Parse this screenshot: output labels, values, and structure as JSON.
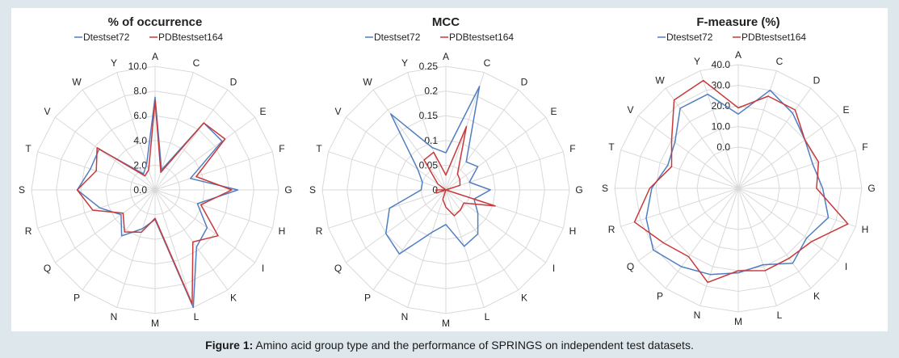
{
  "caption": {
    "label": "Figure 1:",
    "text": " Amino acid group type and the performance of SPRINGS on independent test datasets."
  },
  "colors": {
    "Dtestset72": "#4f7ec2",
    "PDBtestset164": "#c9383a",
    "grid": "#d9d9d9",
    "axis": "#bfbfbf",
    "background": "#dde7ec"
  },
  "chart_data": [
    {
      "type": "radar",
      "title": "% of occurrence",
      "categories": [
        "A",
        "C",
        "D",
        "E",
        "F",
        "G",
        "H",
        "I",
        "K",
        "L",
        "M",
        "N",
        "P",
        "Q",
        "R",
        "S",
        "T",
        "V",
        "W",
        "Y"
      ],
      "range": [
        0,
        10
      ],
      "ticks": [
        "0.0",
        "2.0",
        "4.0",
        "6.0",
        "8.0",
        "10.0"
      ],
      "tick_values": [
        0,
        2,
        4,
        6,
        8,
        10
      ],
      "series": [
        {
          "name": "Dtestset72",
          "values": [
            7.5,
            1.7,
            6.7,
            6.7,
            3.0,
            6.7,
            3.6,
            5.2,
            5.7,
            10.0,
            2.4,
            3.3,
            4.6,
            3.4,
            4.7,
            6.3,
            5.5,
            5.6,
            1.6,
            2.2
          ]
        },
        {
          "name": "PDBtestset164",
          "values": [
            7.2,
            1.5,
            6.7,
            7.0,
            3.5,
            6.2,
            3.9,
            6.3,
            5.2,
            9.7,
            2.3,
            3.6,
            4.2,
            3.2,
            5.3,
            6.3,
            5.0,
            5.8,
            1.4,
            1.7
          ]
        }
      ],
      "legend_position": "top"
    },
    {
      "type": "radar",
      "title": "MCC",
      "categories": [
        "A",
        "C",
        "D",
        "E",
        "F",
        "G",
        "H",
        "I",
        "K",
        "L",
        "M",
        "N",
        "P",
        "Q",
        "R",
        "S",
        "T",
        "V",
        "W",
        "Y"
      ],
      "range": [
        0,
        0.25
      ],
      "ticks": [
        "0",
        "0.05",
        "0.1",
        "0.15",
        "0.2",
        "0.25"
      ],
      "tick_values": [
        0,
        0.05,
        0.1,
        0.15,
        0.2,
        0.25
      ],
      "series": [
        {
          "name": "Dtestset72",
          "values": [
            0.075,
            0.22,
            0.07,
            0.08,
            0.05,
            0.09,
            0.06,
            0.08,
            0.11,
            0.12,
            0.07,
            0.09,
            0.16,
            0.15,
            0.12,
            0.05,
            0.05,
            0.07,
            0.19,
            0.09
          ]
        },
        {
          "name": "PDBtestset164",
          "values": [
            0.03,
            0.135,
            0.04,
            0.035,
            0.03,
            0.0,
            0.105,
            0.045,
            0.05,
            0.055,
            0.035,
            0.02,
            0.0,
            0.0,
            0.02,
            0.02,
            0.0,
            0.02,
            0.075,
            0.08
          ]
        }
      ],
      "legend_position": "top"
    },
    {
      "type": "radar",
      "title": "F-measure (%)",
      "categories": [
        "A",
        "C",
        "D",
        "E",
        "F",
        "G",
        "H",
        "I",
        "K",
        "L",
        "M",
        "N",
        "P",
        "Q",
        "R",
        "S",
        "T",
        "V",
        "W",
        "Y"
      ],
      "range": [
        -20,
        40
      ],
      "ticks": [
        "0.0",
        "10.0",
        "20.0",
        "30.0",
        "40.0"
      ],
      "tick_values": [
        0,
        10,
        20,
        30,
        40
      ],
      "series": [
        {
          "name": "Dtestset72",
          "values": [
            16,
            30,
            25,
            20,
            18,
            21,
            26,
            21,
            25,
            19,
            21,
            24,
            27,
            31,
            27,
            22,
            16,
            18,
            28,
            28
          ]
        },
        {
          "name": "PDBtestset164",
          "values": [
            19,
            27,
            27,
            20,
            21,
            18,
            36,
            24,
            22,
            22,
            20,
            28,
            21,
            25,
            33,
            23,
            14,
            20,
            33,
            35
          ]
        }
      ],
      "legend_position": "top"
    }
  ]
}
